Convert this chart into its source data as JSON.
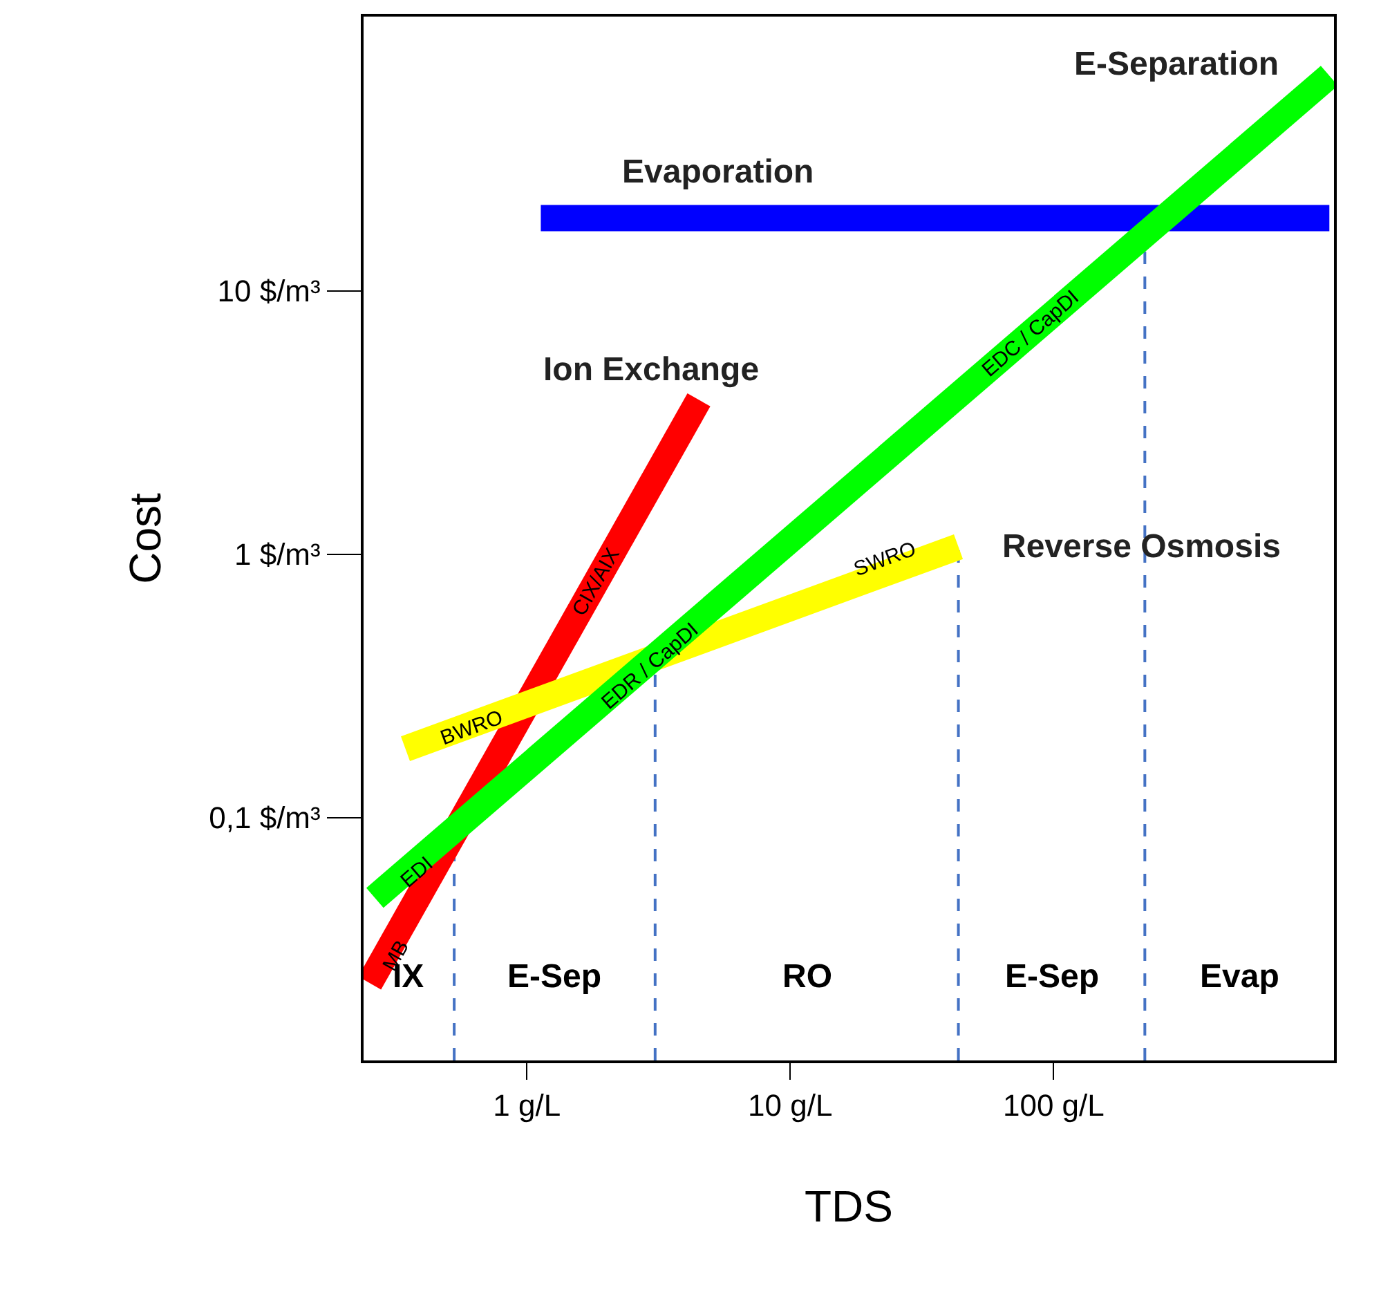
{
  "chart_data": {
    "type": "line",
    "xlabel": "TDS",
    "ylabel": "Cost",
    "log": "xy",
    "grid": false,
    "legend": false,
    "marker": "none",
    "line_style": "solid",
    "xlim": [
      0.24,
      1160
    ],
    "ylim": [
      0.012,
      110
    ],
    "xticks": [
      {
        "value": 1,
        "label": "1 g/L"
      },
      {
        "value": 10,
        "label": "10 g/L"
      },
      {
        "value": 100,
        "label": "100 g/L"
      }
    ],
    "yticks": [
      {
        "value": 0.1,
        "label": "0,1 $/m³"
      },
      {
        "value": 1,
        "label": "1 $/m³"
      },
      {
        "value": 10,
        "label": "10 $/m³"
      }
    ],
    "series": [
      {
        "name": "Evaporation",
        "color": "#0000ff",
        "x": [
          1.13,
          1114
        ],
        "values": [
          18.9,
          18.9
        ]
      },
      {
        "name": "Ion Exchange",
        "color": "#ff0000",
        "x": [
          0.253,
          4.5
        ],
        "values": [
          0.0236,
          3.86
        ]
      },
      {
        "name": "Reverse Osmosis",
        "color": "#ffff00",
        "x": [
          0.346,
          43.5
        ],
        "values": [
          0.183,
          1.07
        ]
      },
      {
        "name": "E-Separation",
        "color": "#00ff00",
        "x": [
          0.265,
          1114
        ],
        "values": [
          0.0497,
          65.6
        ]
      }
    ],
    "ref_lines": [
      {
        "axis": "x",
        "value": 0.53,
        "color": "#4472c4",
        "line_style": "dashed"
      },
      {
        "axis": "x",
        "value": 3.07,
        "color": "#4472c4",
        "line_style": "dashed"
      },
      {
        "axis": "x",
        "value": 43.5,
        "color": "#4472c4",
        "line_style": "dashed"
      },
      {
        "axis": "x",
        "value": 222,
        "color": "#4472c4",
        "line_style": "dashed"
      }
    ],
    "annotations": [
      {
        "text": "MB",
        "x": 0.318,
        "y": 0.03
      },
      {
        "text": "EDI",
        "x": 0.38,
        "y": 0.062
      },
      {
        "text": "CIX/AIX",
        "x": 1.83,
        "y": 0.78
      },
      {
        "text": "BWRO",
        "x": 0.62,
        "y": 0.219
      },
      {
        "text": "EDR / CapDI",
        "x": 2.96,
        "y": 0.377
      },
      {
        "text": "SWRO",
        "x": 23,
        "y": 0.953
      },
      {
        "text": "EDC / CapDI",
        "x": 81.6,
        "y": 6.9
      },
      "IX",
      "E-Sep",
      "RO",
      "E-Sep",
      "Evap"
    ]
  }
}
